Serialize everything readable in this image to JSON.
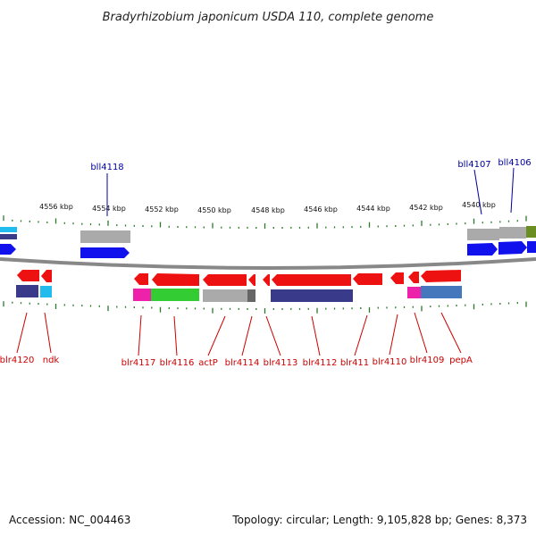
{
  "title": "Bradyrhizobium japonicum USDA 110, complete genome",
  "footer": {
    "accession": "Accession: NC_004463",
    "summary": "Topology: circular; Length: 9,105,828 bp; Genes: 8,373"
  },
  "colors": {
    "backbone": "#888888",
    "tick": "#2a7a2a",
    "label_forward": "#cc0000",
    "label_reverse": "#000099",
    "gene_red": "#ee1111",
    "gene_blue": "#1111ee"
  },
  "scale_labels": [
    "4556 kbp",
    "4554 kbp",
    "4552 kbp",
    "4550 kbp",
    "4548 kbp",
    "4546 kbp",
    "4544 kbp",
    "4542 kbp",
    "4540 kbp"
  ],
  "reverse_genes": [
    "bll4118",
    "bll4107",
    "bll4106"
  ],
  "forward_genes": [
    "blr4120",
    "ndk",
    "blr4117",
    "blr4116",
    "actP",
    "blr4114",
    "blr4113",
    "blr4112",
    "blr411",
    "blr4110",
    "blr4109",
    "pepA"
  ]
}
